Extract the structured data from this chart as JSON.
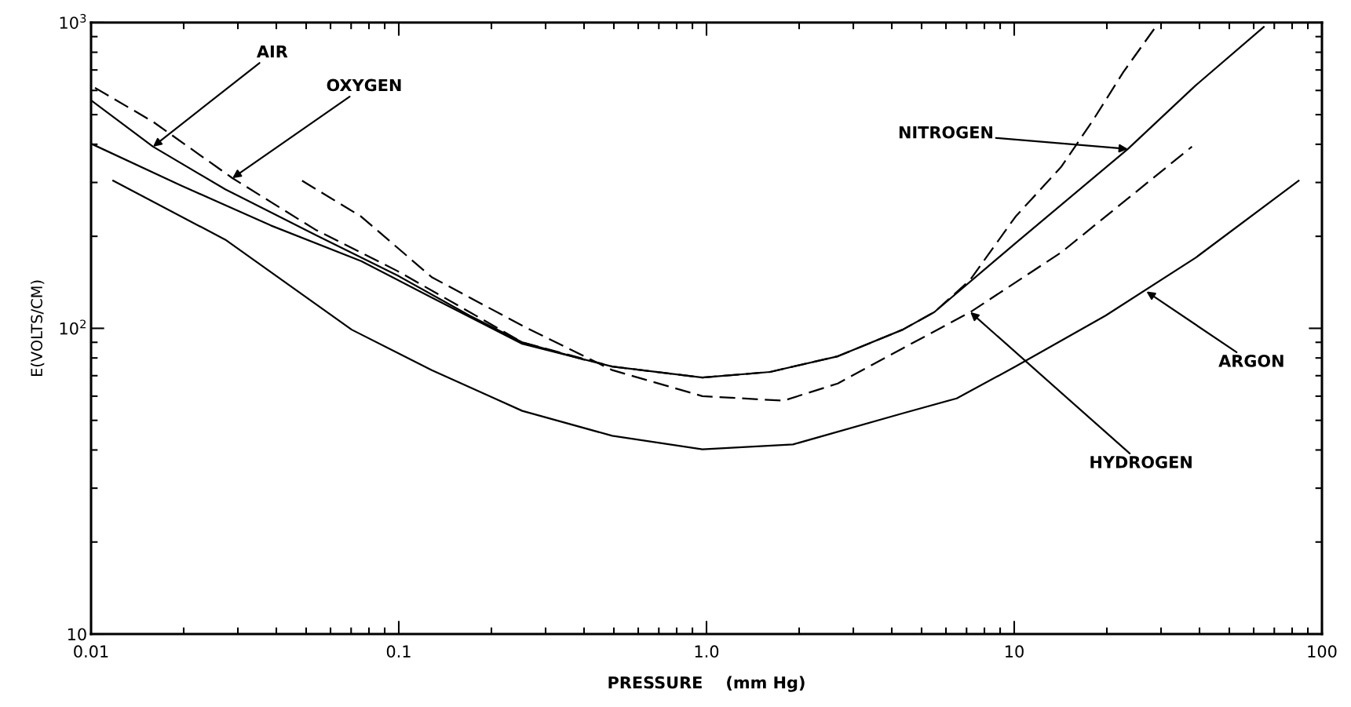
{
  "chart_data": {
    "type": "line",
    "xlabel": "PRESSURE    (mm Hg)",
    "ylabel": "E(VOLTS/CM)",
    "log": "xy",
    "xlim": [
      0.01,
      100
    ],
    "ylim": [
      10,
      1000
    ],
    "xticks": [
      {
        "value": 0.01,
        "label": "0.01"
      },
      {
        "value": 0.1,
        "label": "0.1"
      },
      {
        "value": 1,
        "label": "1.0"
      },
      {
        "value": 10,
        "label": "10"
      },
      {
        "value": 100,
        "label": "100"
      }
    ],
    "yticks": [
      {
        "value": 10,
        "label": "10"
      },
      {
        "value": 100,
        "label": "10$^{2}$"
      },
      {
        "value": 1000,
        "label": "10$^{3}$"
      }
    ],
    "series": [
      {
        "color": "#000000",
        "line_style": "solid",
        "x": [
          0.0101,
          0.0159,
          0.0273,
          0.0537,
          0.099,
          0.17,
          0.252,
          0.4
        ],
        "values": [
          553,
          393,
          285,
          202,
          149,
          110,
          90,
          79
        ]
      },
      {
        "color": "#000000",
        "line_style": "dashed",
        "x": [
          0.0103,
          0.0159,
          0.0288,
          0.0537,
          0.099,
          0.17,
          0.252,
          0.494,
          0.97,
          1.61,
          2.67,
          4.34,
          5.5,
          7.19,
          10.1,
          14.2,
          17.9,
          22.6,
          28.8
        ],
        "values": [
          612,
          474,
          310,
          210,
          154,
          113,
          90,
          75,
          69,
          72,
          81,
          99,
          113,
          144,
          232,
          337,
          474,
          688,
          968
        ]
      },
      {
        "color": "#000000",
        "line_style": "solid",
        "x": [
          0.0101,
          0.0195,
          0.0384,
          0.0755,
          0.128,
          0.252,
          0.494,
          0.97,
          1.61,
          2.67,
          4.34,
          5.5,
          10.1,
          23.4,
          38.8,
          64.7
        ],
        "values": [
          400,
          294,
          217,
          166,
          126,
          89,
          75,
          69,
          72,
          81,
          99,
          113,
          190,
          386,
          622,
          968
        ]
      },
      {
        "color": "#000000",
        "line_style": "dashed",
        "x": [
          0.0485,
          0.0755,
          0.128,
          0.252,
          0.494,
          0.97,
          1.78,
          2.67,
          4.34,
          7.2,
          14.2,
          37.8
        ],
        "values": [
          304,
          232,
          147,
          102,
          73,
          60,
          58,
          66,
          86,
          113,
          177,
          393
        ]
      },
      {
        "color": "#000000",
        "line_style": "solid",
        "x": [
          0.0118,
          0.0273,
          0.0703,
          0.128,
          0.252,
          0.494,
          0.97,
          1.91,
          4.34,
          6.5,
          10.1,
          19.8,
          38.8,
          84
        ],
        "values": [
          304,
          195,
          99,
          73,
          53.7,
          44.5,
          40.2,
          41.7,
          52.7,
          59,
          75,
          110,
          170,
          304
        ]
      }
    ],
    "annotations": [
      {
        "text": "AIR",
        "x": 0.0159,
        "y": 393
      },
      {
        "text": "OXYGEN",
        "x": 0.0288,
        "y": 310
      },
      {
        "text": "NITROGEN",
        "x": 23.4,
        "y": 386
      },
      {
        "text": "HYDROGEN",
        "x": 7.2,
        "y": 113
      },
      {
        "text": "ARGON",
        "x": 26.9,
        "y": 132
      }
    ]
  }
}
